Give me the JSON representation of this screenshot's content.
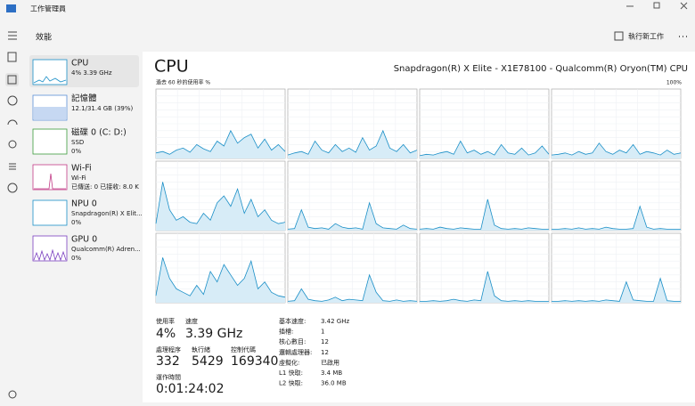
{
  "title_bar": {
    "title": "工作管理員"
  },
  "header": {
    "page": "效能",
    "run_task": "執行新工作"
  },
  "sidebar": [
    {
      "name": "CPU",
      "lines": [
        "4%  3.39 GHz"
      ]
    },
    {
      "name": "記憶體",
      "lines": [
        "12.1/31.4 GB (39%)"
      ]
    },
    {
      "name": "磁碟 0 (C: D:)",
      "lines": [
        "SSD",
        "0%"
      ]
    },
    {
      "name": "Wi-Fi",
      "lines": [
        "Wi-Fi",
        "已傳送: 0 已接收: 8.0 K"
      ]
    },
    {
      "name": "NPU 0",
      "lines": [
        "Snapdragon(R) X Elit...",
        "0%"
      ]
    },
    {
      "name": "GPU 0",
      "lines": [
        "Qualcomm(R) Adren...",
        "0%"
      ]
    }
  ],
  "main": {
    "title": "CPU",
    "model": "Snapdragon(R) X Elite - X1E78100 - Qualcomm(R) Oryon(TM) CPU",
    "graph_caption": "過去 60 秒的使用率 %",
    "graph_max": "100%",
    "ylim": [
      0,
      100
    ],
    "cores": [
      {
        "values": [
          8,
          10,
          6,
          12,
          15,
          9,
          20,
          14,
          10,
          25,
          18,
          40,
          22,
          30,
          35,
          15,
          28,
          12,
          20,
          10
        ]
      },
      {
        "values": [
          5,
          8,
          10,
          6,
          25,
          12,
          8,
          20,
          10,
          15,
          9,
          30,
          12,
          18,
          40,
          15,
          10,
          20,
          8,
          12
        ]
      },
      {
        "values": [
          4,
          6,
          5,
          8,
          10,
          6,
          25,
          8,
          12,
          6,
          10,
          5,
          20,
          8,
          6,
          15,
          5,
          8,
          18,
          6
        ]
      },
      {
        "values": [
          5,
          6,
          8,
          5,
          10,
          6,
          8,
          22,
          10,
          6,
          12,
          8,
          20,
          6,
          10,
          8,
          5,
          12,
          6,
          8
        ]
      },
      {
        "values": [
          10,
          70,
          30,
          15,
          20,
          12,
          10,
          25,
          15,
          40,
          50,
          35,
          60,
          25,
          45,
          20,
          30,
          15,
          10,
          12
        ]
      },
      {
        "values": [
          2,
          3,
          30,
          5,
          3,
          4,
          2,
          10,
          5,
          3,
          4,
          2,
          40,
          10,
          4,
          3,
          2,
          8,
          3,
          2
        ]
      },
      {
        "values": [
          2,
          3,
          2,
          5,
          3,
          2,
          4,
          3,
          2,
          2,
          45,
          8,
          3,
          2,
          3,
          2,
          4,
          3,
          2,
          2
        ]
      },
      {
        "values": [
          2,
          2,
          3,
          2,
          4,
          2,
          3,
          2,
          5,
          3,
          2,
          2,
          3,
          35,
          5,
          2,
          3,
          2,
          2,
          2
        ]
      },
      {
        "values": [
          10,
          65,
          35,
          20,
          15,
          10,
          25,
          12,
          45,
          30,
          55,
          40,
          25,
          35,
          60,
          20,
          30,
          15,
          10,
          8
        ]
      },
      {
        "values": [
          2,
          3,
          20,
          5,
          3,
          2,
          4,
          8,
          3,
          5,
          4,
          3,
          40,
          15,
          3,
          2,
          4,
          2,
          3,
          2
        ]
      },
      {
        "values": [
          2,
          2,
          3,
          2,
          3,
          5,
          3,
          2,
          4,
          3,
          45,
          10,
          3,
          2,
          3,
          2,
          3,
          2,
          2,
          2
        ]
      },
      {
        "values": [
          2,
          2,
          3,
          2,
          3,
          2,
          3,
          2,
          4,
          3,
          2,
          30,
          4,
          3,
          2,
          2,
          35,
          3,
          2,
          2
        ]
      }
    ]
  },
  "stats": {
    "utilization_label": "使用率",
    "utilization": "4%",
    "speed_label": "速度",
    "speed": "3.39 GHz",
    "processes_label": "處理程序",
    "processes": "332",
    "threads_label": "執行緒",
    "threads": "5429",
    "handles_label": "控制代碼",
    "handles": "169340",
    "uptime_label": "運作時間",
    "uptime": "0:01:24:02"
  },
  "details": [
    {
      "label": "基本速度:",
      "value": "3.42 GHz"
    },
    {
      "label": "插槽:",
      "value": "1"
    },
    {
      "label": "核心數目:",
      "value": "12"
    },
    {
      "label": "邏輯處理器:",
      "value": "12"
    },
    {
      "label": "虛擬化:",
      "value": "已啟用"
    },
    {
      "label": "L1 快取:",
      "value": "3.4 MB"
    },
    {
      "label": "L2 快取:",
      "value": "36.0 MB"
    }
  ]
}
